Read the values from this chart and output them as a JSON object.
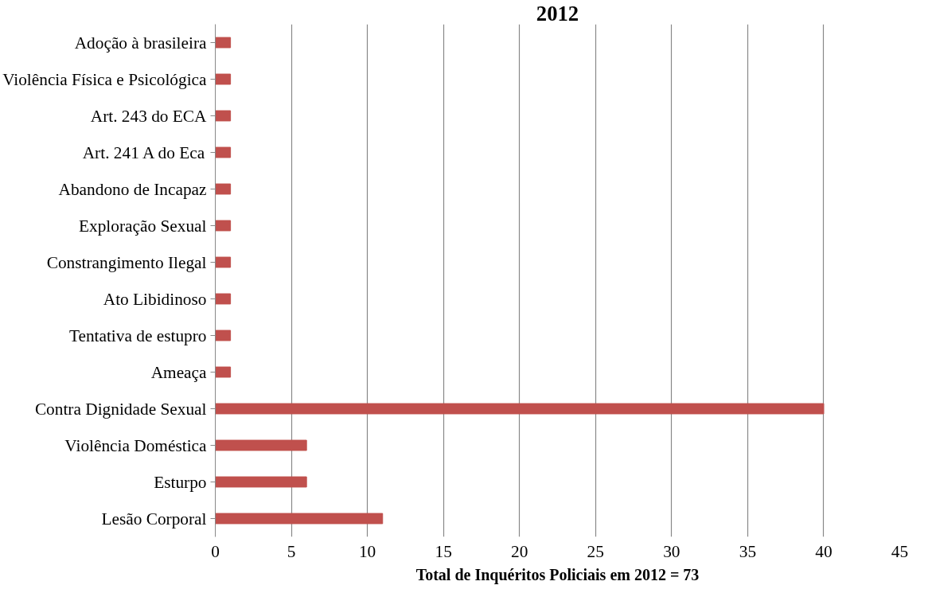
{
  "chart_data": {
    "type": "bar",
    "orientation": "horizontal",
    "title": "2012",
    "xlabel": "Total de Inquéritos Policiais em 2012 = 73",
    "categories": [
      "Adoção à brasileira",
      "Violência Física e Psicológica",
      "Art. 243 do ECA",
      "Art. 241 A do Eca",
      "Abandono de Incapaz",
      "Exploração Sexual",
      "Constrangimento Ilegal",
      "Ato Libidinoso",
      "Tentativa de estupro",
      "Ameaça",
      "Contra Dignidade Sexual",
      "Violência Doméstica",
      "Esturpo",
      "Lesão Corporal"
    ],
    "values": [
      1,
      1,
      1,
      1,
      1,
      1,
      1,
      1,
      1,
      1,
      40,
      6,
      6,
      11
    ],
    "color": "#c0504d",
    "xlim": [
      0,
      45
    ],
    "xticks": [
      0,
      5,
      10,
      15,
      20,
      25,
      30,
      35,
      40,
      45
    ],
    "grid": "x"
  }
}
